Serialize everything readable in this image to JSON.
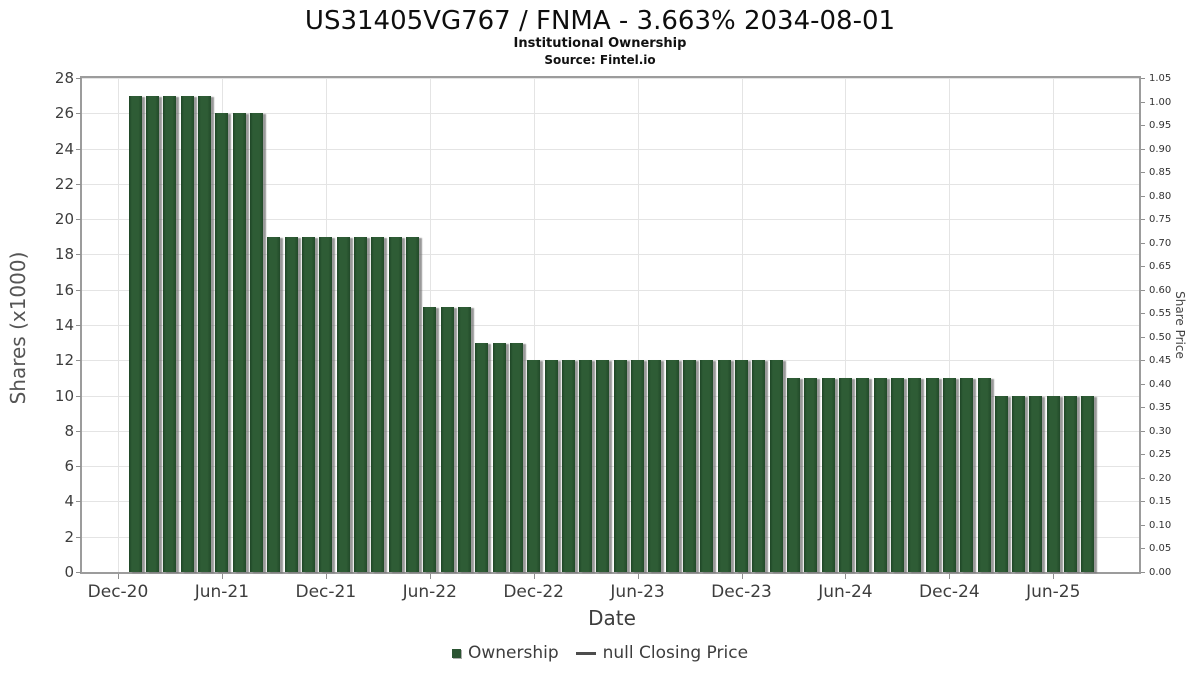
{
  "chart_data": {
    "type": "bar",
    "title": "US31405VG767 / FNMA - 3.663% 2034-08-01",
    "subtitle": "Institutional Ownership",
    "source": "Source: Fintel.io",
    "xlabel": "Date",
    "ylabel_left": "Shares (x1000)",
    "ylabel_right": "Share Price",
    "bar_color": "#2b5432",
    "grid": true,
    "y_left_axis": {
      "min": 0,
      "max": 28,
      "step": 2,
      "tick_labels": [
        "0",
        "2",
        "4",
        "6",
        "8",
        "10",
        "12",
        "14",
        "16",
        "18",
        "20",
        "22",
        "24",
        "26",
        "28"
      ]
    },
    "y_right_axis": {
      "min": 0.0,
      "max": 1.05,
      "step": 0.05,
      "tick_labels": [
        "0.00",
        "0.05",
        "0.10",
        "0.15",
        "0.20",
        "0.25",
        "0.30",
        "0.35",
        "0.40",
        "0.45",
        "0.50",
        "0.55",
        "0.60",
        "0.65",
        "0.70",
        "0.75",
        "0.80",
        "0.85",
        "0.90",
        "0.95",
        "1.00",
        "1.05"
      ]
    },
    "x_axis": {
      "start_month": "Dec-20",
      "tick_labels": [
        "Dec-20",
        "Jun-21",
        "Dec-21",
        "Jun-22",
        "Dec-22",
        "Jun-23",
        "Dec-23",
        "Jun-24",
        "Dec-24",
        "Jun-25"
      ],
      "tick_month_offsets": [
        0,
        6,
        12,
        18,
        24,
        30,
        36,
        42,
        48,
        54
      ]
    },
    "categories": [
      "Jan-21",
      "Feb-21",
      "Mar-21",
      "Apr-21",
      "May-21",
      "Jun-21",
      "Jul-21",
      "Aug-21",
      "Sep-21",
      "Oct-21",
      "Nov-21",
      "Dec-21",
      "Jan-22",
      "Feb-22",
      "Mar-22",
      "Apr-22",
      "May-22",
      "Jun-22",
      "Jul-22",
      "Aug-22",
      "Sep-22",
      "Oct-22",
      "Nov-22",
      "Dec-22",
      "Jan-23",
      "Feb-23",
      "Mar-23",
      "Apr-23",
      "May-23",
      "Jun-23",
      "Jul-23",
      "Aug-23",
      "Sep-23",
      "Oct-23",
      "Nov-23",
      "Dec-23",
      "Jan-24",
      "Feb-24",
      "Mar-24",
      "Apr-24",
      "May-24",
      "Jun-24",
      "Jul-24",
      "Aug-24",
      "Sep-24",
      "Oct-24",
      "Nov-24",
      "Dec-24",
      "Jan-25",
      "Feb-25",
      "Mar-25",
      "Apr-25",
      "May-25",
      "Jun-25",
      "Jul-25",
      "Aug-25"
    ],
    "series": [
      {
        "name": "Ownership",
        "type": "bar",
        "color": "#2b5432",
        "values": [
          27,
          27,
          27,
          27,
          27,
          26,
          26,
          26,
          19,
          19,
          19,
          19,
          19,
          19,
          19,
          19,
          19,
          15,
          15,
          15,
          13,
          13,
          13,
          12,
          12,
          12,
          12,
          12,
          12,
          12,
          12,
          12,
          12,
          12,
          12,
          12,
          12,
          12,
          11,
          11,
          11,
          11,
          11,
          11,
          11,
          11,
          11,
          11,
          11,
          11,
          10,
          10,
          10,
          10,
          10,
          10
        ]
      },
      {
        "name": "null Closing Price",
        "type": "line",
        "color": "#4d4d4d",
        "values": []
      }
    ],
    "legend": {
      "position": "bottom",
      "items": [
        {
          "label": "Ownership",
          "swatch": "square",
          "color": "#2b5432"
        },
        {
          "label": "null Closing Price",
          "swatch": "line",
          "color": "#4d4d4d"
        }
      ]
    }
  }
}
